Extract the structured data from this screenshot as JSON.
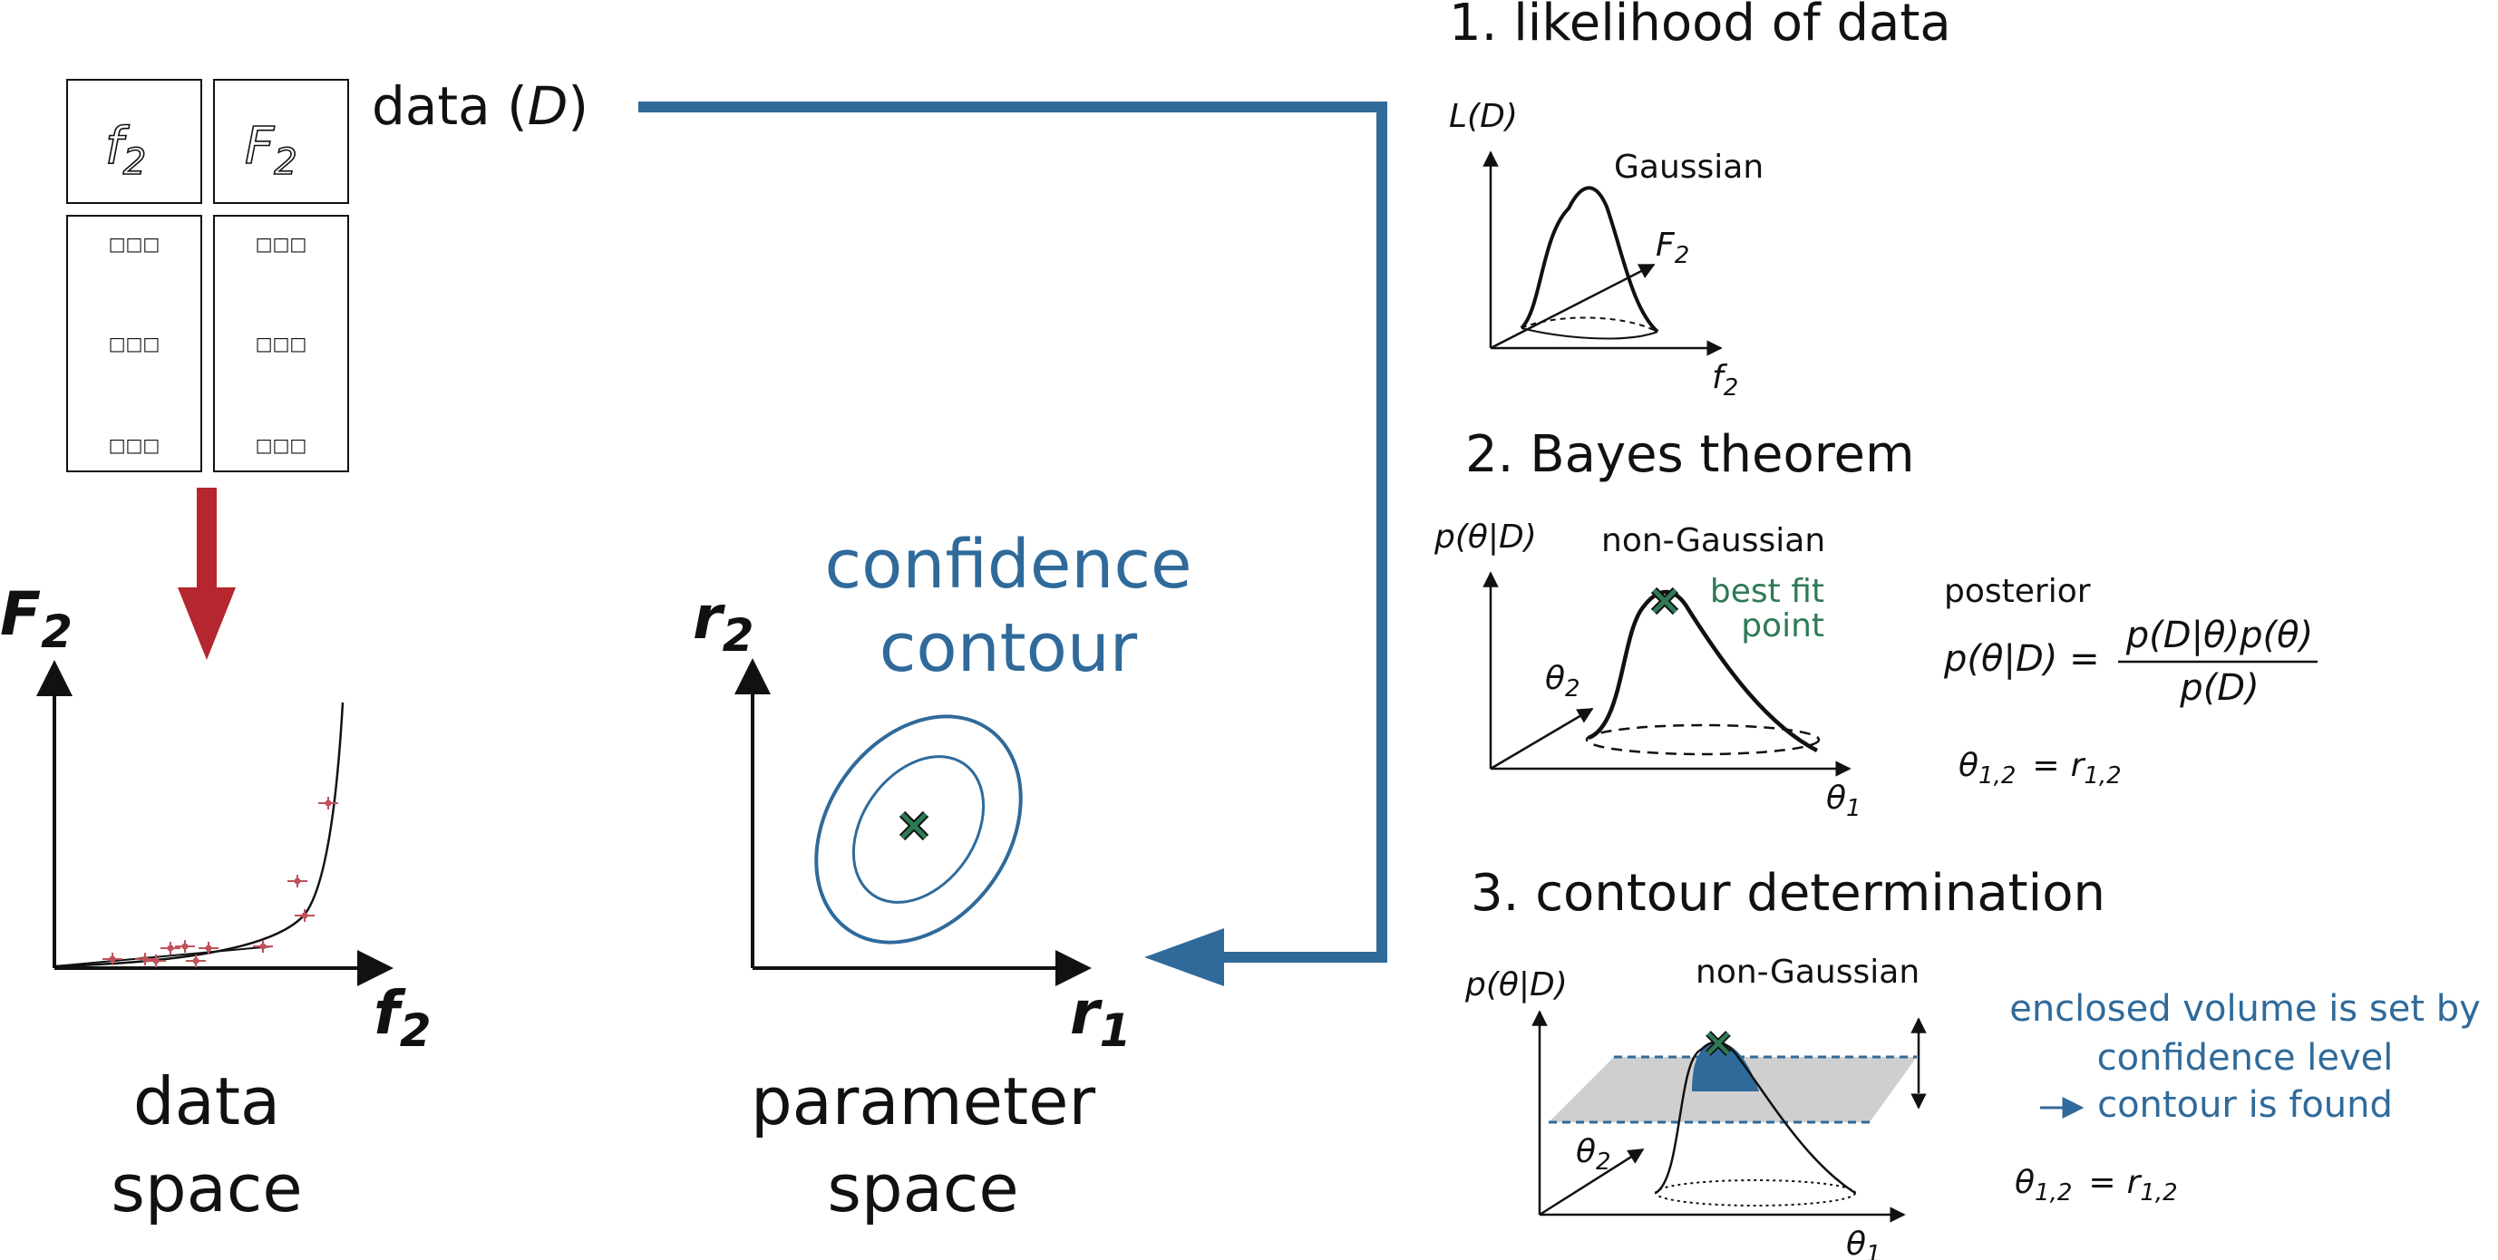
{
  "colors": {
    "blue": "#2f6a9a",
    "red": "#b5262e",
    "green": "#2e7a55",
    "pink": "#c0505a",
    "black": "#111111",
    "gray_plane": "#cfcfcf"
  },
  "table": {
    "header_left": {
      "main": "f",
      "sub": "2"
    },
    "header_right": {
      "main": "F",
      "sub": "2"
    },
    "cell_symbol": "□□□"
  },
  "data_label": {
    "prefix": "data (",
    "var": "D",
    "suffix": ")"
  },
  "data_space": {
    "y_axis": {
      "main": "F",
      "sub": "2"
    },
    "x_axis": {
      "main": "f",
      "sub": "2"
    },
    "caption_line1": "data",
    "caption_line2": "space"
  },
  "parameter_space": {
    "title_line1": "confidence",
    "title_line2": "contour",
    "y_axis": {
      "main": "r",
      "sub": "2"
    },
    "x_axis": {
      "main": "r",
      "sub": "1"
    },
    "caption_line1": "parameter",
    "caption_line2": "space",
    "marker_icon": "x-mark-icon"
  },
  "step1": {
    "title": "1. likelihood of data",
    "y_label": "L(D)",
    "peak_label": "Gaussian",
    "depth_axis": {
      "main": "F",
      "sub": "2"
    },
    "x_axis": {
      "main": "f",
      "sub": "2"
    }
  },
  "step2": {
    "title": "2. Bayes theorem",
    "y_label": "p(θ|D)",
    "peak_label": "non-Gaussian",
    "best_fit_line1": "best fit",
    "best_fit_line2": "point",
    "depth_axis": {
      "main": "θ",
      "sub": "2"
    },
    "x_axis": {
      "main": "θ",
      "sub": "1"
    },
    "posterior_label": "posterior",
    "formula_lhs": "p(θ|D) =",
    "formula_num": "p(D|θ)p(θ)",
    "formula_den": "p(D)",
    "relation": {
      "lhs": "θ",
      "lhs_sub": "1,2",
      "eq": "=",
      "rhs": "r",
      "rhs_sub": "1,2"
    }
  },
  "step3": {
    "title": "3. contour determination",
    "y_label": "p(θ|D)",
    "peak_label": "non-Gaussian",
    "depth_axis": {
      "main": "θ",
      "sub": "2"
    },
    "x_axis": {
      "main": "θ",
      "sub": "1"
    },
    "note_line1": "enclosed volume is set by",
    "note_line2": "confidence level",
    "note_line3": "contour is found",
    "relation": {
      "lhs": "θ",
      "lhs_sub": "1,2",
      "eq": "=",
      "rhs": "r",
      "rhs_sub": "1,2"
    }
  }
}
